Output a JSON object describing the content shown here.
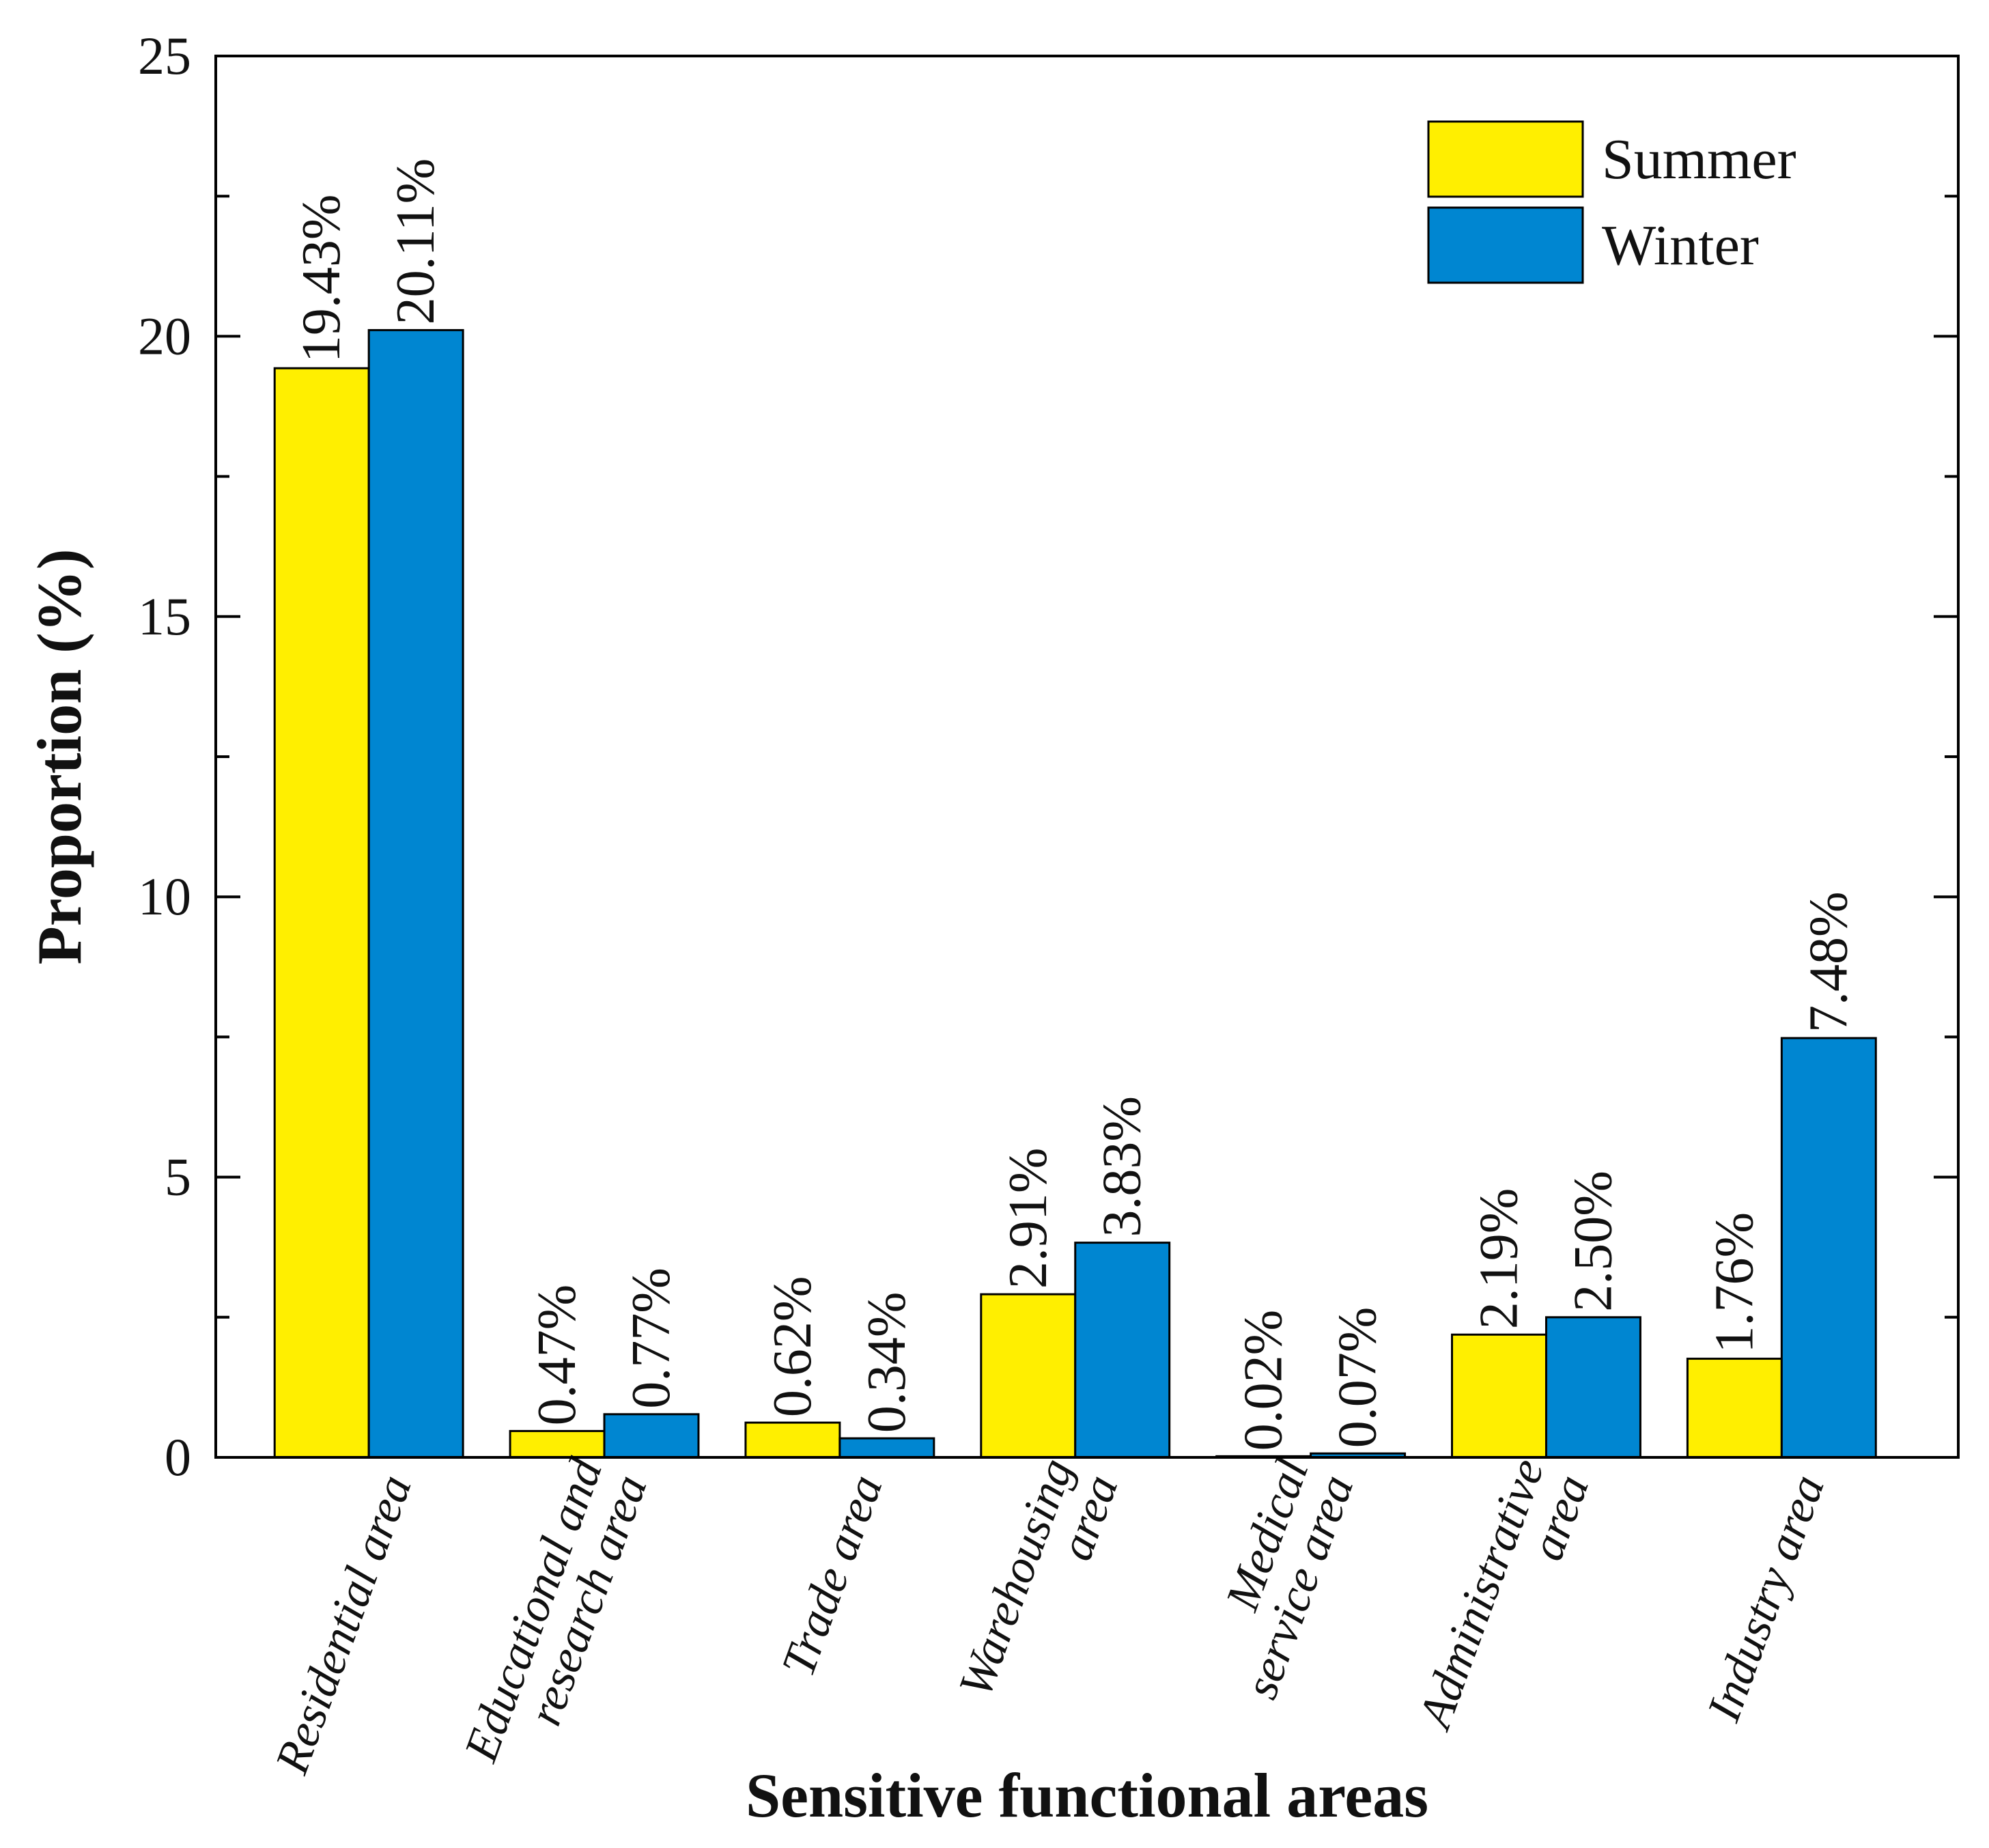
{
  "chart_data": {
    "type": "bar",
    "title": "",
    "xlabel": "Sensitive functional areas",
    "ylabel": "Proportion (%)",
    "ylim": [
      0,
      25
    ],
    "yticks": [
      0,
      5,
      10,
      15,
      20,
      25
    ],
    "grid": false,
    "legend_position": "top-right",
    "categories": [
      [
        "Residential area"
      ],
      [
        "Educational and",
        "research area"
      ],
      [
        "Trade area"
      ],
      [
        "Warehousing",
        "area"
      ],
      [
        "Medical",
        "service area"
      ],
      [
        "Administrative",
        "area"
      ],
      [
        "Industry area"
      ]
    ],
    "series": [
      {
        "name": "Summer",
        "color": "#FFEF00",
        "values": [
          19.43,
          0.47,
          0.62,
          2.91,
          0.02,
          2.19,
          1.76
        ],
        "labels": [
          "19.43%",
          "0.47%",
          "0.62%",
          "2.91%",
          "0.02%",
          "2.19%",
          "1.76%"
        ]
      },
      {
        "name": "Winter",
        "color": "#0086D1",
        "values": [
          20.11,
          0.77,
          0.34,
          3.83,
          0.07,
          2.5,
          7.48
        ],
        "labels": [
          "20.11%",
          "0.77%",
          "0.34%",
          "3.83%",
          "0.07%",
          "2.50%",
          "7.48%"
        ]
      }
    ]
  }
}
